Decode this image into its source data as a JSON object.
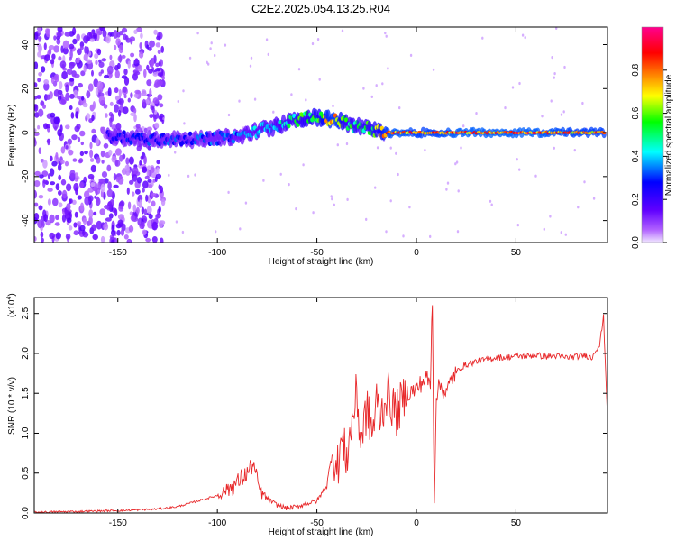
{
  "title": "C2E2.2025.054.13.25.R04",
  "chart_data": [
    {
      "type": "heatmap",
      "xlabel": "Height of straight line (km)",
      "ylabel": "Frequency (Hz)",
      "xlim": [
        -192,
        96
      ],
      "ylim": [
        -50,
        48
      ],
      "xticks": [
        -150,
        -100,
        -50,
        0,
        50
      ],
      "yticks": [
        40,
        20,
        0,
        -20,
        -40
      ],
      "colorbar": {
        "label": "Normalized spectral amplitude",
        "range": [
          0,
          1
        ],
        "ticks": [
          "0.0",
          "0.2",
          "0.4",
          "0.6",
          "0.8"
        ],
        "colors": [
          "#ffffff",
          "#8000ff",
          "#0000ff",
          "#00ffff",
          "#00ff00",
          "#ffff00",
          "#ff8000",
          "#ff0000",
          "#ff00a0"
        ]
      },
      "ridge": {
        "x": [
          -150,
          -130,
          -110,
          -90,
          -80,
          -70,
          -60,
          -50,
          -45,
          -40,
          -35,
          -30,
          -25,
          -20,
          -15,
          -10,
          0,
          10,
          20,
          40,
          60,
          80,
          95
        ],
        "freq": [
          -2,
          -3,
          -3,
          -2,
          1,
          3,
          6,
          7,
          6,
          6,
          4,
          3,
          2,
          1,
          0,
          0,
          0,
          0,
          0,
          0,
          0,
          0,
          0
        ],
        "amp": [
          0.3,
          0.35,
          0.35,
          0.4,
          0.45,
          0.5,
          0.6,
          0.7,
          0.85,
          0.9,
          0.6,
          0.6,
          0.6,
          0.7,
          0.9,
          0.95,
          0.9,
          0.9,
          0.95,
          0.95,
          0.95,
          0.9,
          0.9
        ]
      }
    },
    {
      "type": "line",
      "xlabel": "Height of straight line (km)",
      "ylabel": "SNR (10 * v/v)",
      "scale_label": "(x10",
      "scale_exp": "4",
      "xlim": [
        -192,
        96
      ],
      "ylim": [
        0,
        2.7
      ],
      "xticks": [
        -150,
        -100,
        -50,
        0,
        50
      ],
      "yticks": [
        "0.0",
        "0.5",
        "1.0",
        "1.5",
        "2.0",
        "2.5"
      ],
      "color": "#e8282a",
      "x": [
        -192,
        -170,
        -150,
        -130,
        -120,
        -110,
        -100,
        -95,
        -90,
        -85,
        -82,
        -80,
        -78,
        -75,
        -70,
        -65,
        -60,
        -55,
        -50,
        -45,
        -42,
        -40,
        -38,
        -35,
        -32,
        -30,
        -28,
        -25,
        -22,
        -20,
        -18,
        -15,
        -10,
        -5,
        0,
        3,
        5,
        7,
        8,
        9,
        10,
        12,
        15,
        18,
        20,
        22,
        25,
        30,
        35,
        40,
        45,
        50,
        55,
        60,
        65,
        70,
        75,
        80,
        85,
        88,
        90,
        92,
        94,
        96
      ],
      "y": [
        0.01,
        0.02,
        0.03,
        0.05,
        0.08,
        0.15,
        0.22,
        0.3,
        0.38,
        0.5,
        0.62,
        0.4,
        0.25,
        0.18,
        0.1,
        0.06,
        0.08,
        0.12,
        0.15,
        0.35,
        0.8,
        0.5,
        0.9,
        0.7,
        1.2,
        1.5,
        0.9,
        1.3,
        1.0,
        1.4,
        1.2,
        1.5,
        1.25,
        1.5,
        1.55,
        1.65,
        1.7,
        1.6,
        2.7,
        0.12,
        1.5,
        1.6,
        1.5,
        1.7,
        1.75,
        1.82,
        1.86,
        1.9,
        1.92,
        1.95,
        1.95,
        1.97,
        1.96,
        1.98,
        1.96,
        1.97,
        1.95,
        1.96,
        1.98,
        1.94,
        2.05,
        2.1,
        2.45,
        1.2
      ]
    }
  ]
}
